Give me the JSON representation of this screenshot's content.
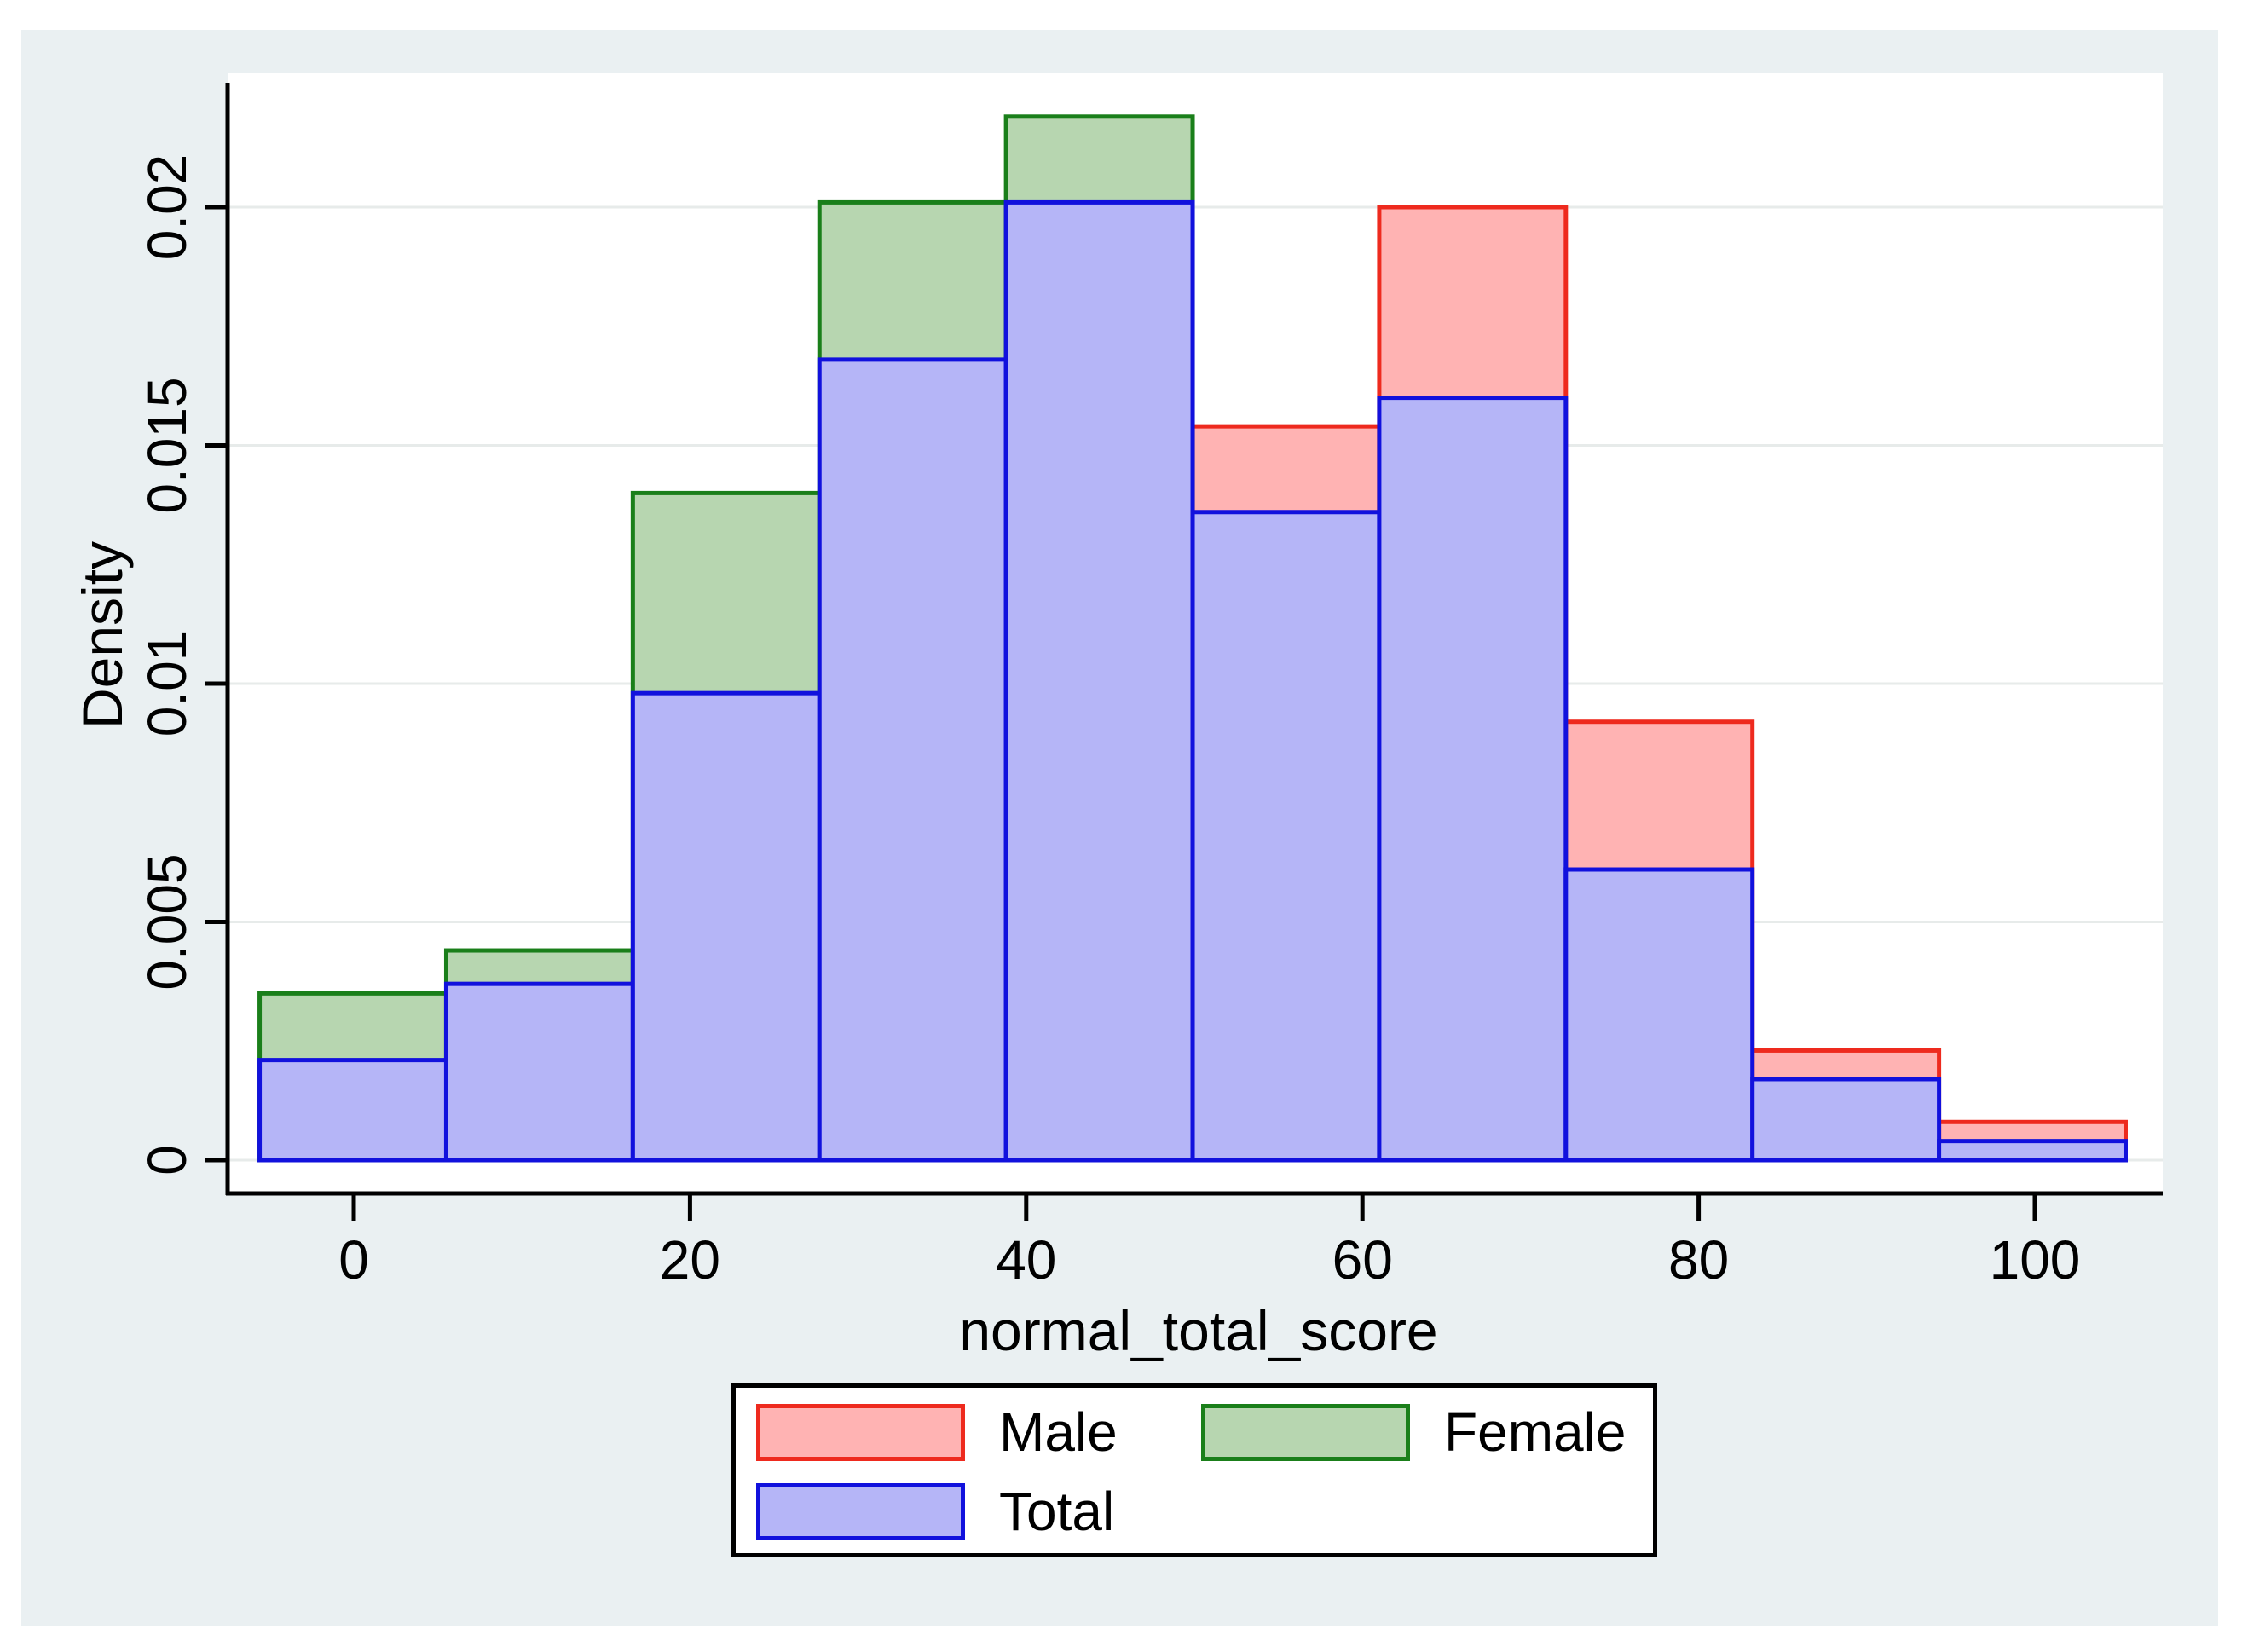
{
  "figure": {
    "page_background": "#ffffff",
    "graph_background": "#eaf0f2",
    "plot_background": "#ffffff",
    "grid_color": "#e7ebea",
    "axis_color": "#000000",
    "text_color": "#000000"
  },
  "axes": {
    "x_title": "normal_total_score",
    "y_title": "Density"
  },
  "chart_data": {
    "type": "bar",
    "subtype": "overlaid-histogram",
    "title": "",
    "xlabel": "normal_total_score",
    "ylabel": "Density",
    "xlim": [
      -7.5,
      107.6
    ],
    "ylim": [
      0,
      0.0228
    ],
    "grid": true,
    "x_ticks": [
      0,
      20,
      40,
      60,
      80,
      100
    ],
    "y_ticks": [
      0,
      0.005,
      0.01,
      0.015,
      0.02
    ],
    "y_tick_labels": [
      "0",
      "0.005",
      "0.01",
      "0.015",
      "0.02"
    ],
    "bin_edges": [
      -5.6,
      5.5,
      16.6,
      27.7,
      38.8,
      49.9,
      61.0,
      72.1,
      83.2,
      94.3,
      105.4
    ],
    "series": [
      {
        "name": "Male",
        "fill": "#ffb3b3",
        "stroke": "#ee2a1e",
        "values": [
          null,
          null,
          null,
          null,
          null,
          0.0154,
          0.02,
          0.0092,
          0.0023,
          0.0008
        ],
        "note": "not visible in bins 1-5 (behind Total)"
      },
      {
        "name": "Female",
        "fill": "#b7d6b0",
        "stroke": "#1a7f1a",
        "values": [
          0.0035,
          0.0044,
          0.014,
          0.0201,
          0.0219,
          null,
          null,
          null,
          null,
          null
        ],
        "note": "not visible in bins 6-10 (behind Total)"
      },
      {
        "name": "Total",
        "fill": "#b5b5f7",
        "stroke": "#1111dd",
        "values": [
          0.0021,
          0.0037,
          0.0098,
          0.0168,
          0.0201,
          0.0136,
          0.016,
          0.0061,
          0.0017,
          0.0004
        ],
        "note": ""
      }
    ],
    "legend_position": "bottom-center"
  },
  "legend": {
    "male_label": "Male",
    "female_label": "Female",
    "total_label": "Total"
  }
}
